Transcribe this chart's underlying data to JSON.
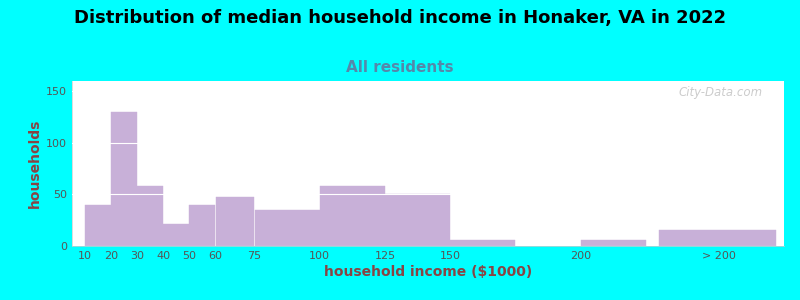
{
  "title": "Distribution of median household income in Honaker, VA in 2022",
  "subtitle": "All residents",
  "xlabel": "household income ($1000)",
  "ylabel": "households",
  "background_outer": "#00FFFF",
  "background_inner_left": "#cce8c0",
  "background_inner_right": "#f5f5ff",
  "bar_color": "#c8b0d8",
  "bar_edgecolor": "#c8b0d8",
  "categories": [
    "10",
    "20",
    "30",
    "40",
    "50",
    "60",
    "75",
    "100",
    "125",
    "150",
    "200",
    "> 200"
  ],
  "values": [
    40,
    130,
    58,
    21,
    40,
    48,
    35,
    58,
    50,
    6,
    6,
    16
  ],
  "bar_lefts": [
    10,
    20,
    30,
    40,
    50,
    60,
    75,
    100,
    125,
    150,
    200,
    230
  ],
  "bar_widths": [
    10,
    10,
    10,
    10,
    10,
    15,
    25,
    25,
    25,
    25,
    25,
    45
  ],
  "ylim": [
    0,
    160
  ],
  "yticks": [
    0,
    50,
    100,
    150
  ],
  "xlim": [
    5,
    278
  ],
  "tick_positions": [
    10,
    20,
    30,
    40,
    50,
    60,
    75,
    100,
    125,
    150,
    200,
    253
  ],
  "title_fontsize": 13,
  "subtitle_fontsize": 11,
  "axis_label_fontsize": 10,
  "tick_fontsize": 8,
  "watermark": "City-Data.com"
}
